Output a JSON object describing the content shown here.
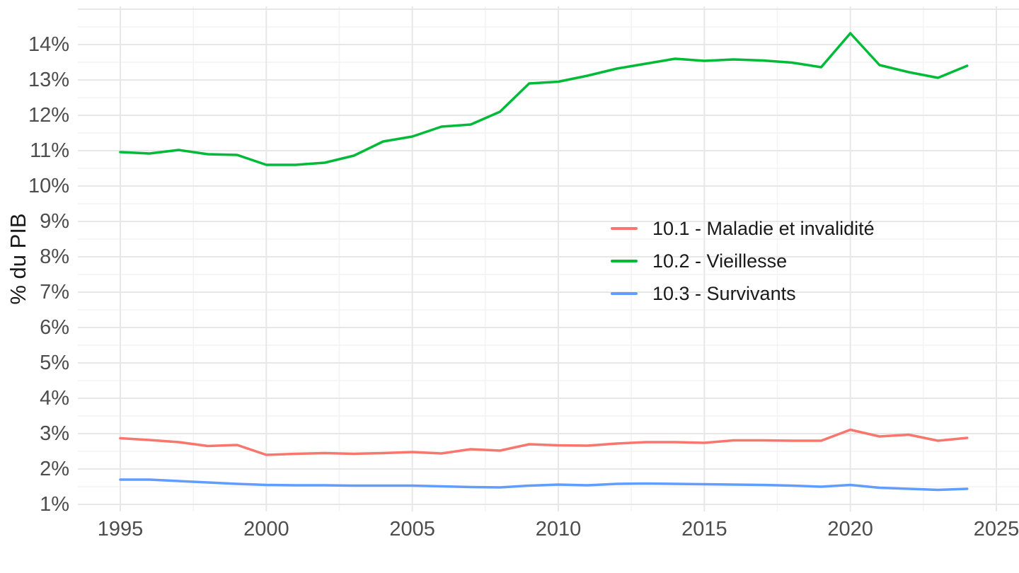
{
  "figure": {
    "background": "#FFFFFF"
  },
  "axes": {
    "y_title": "% du PIB"
  },
  "chart_data": {
    "type": "line",
    "title": "",
    "xlabel": "",
    "ylabel": "% du PIB",
    "x": [
      1995,
      1996,
      1997,
      1998,
      1999,
      2000,
      2001,
      2002,
      2003,
      2004,
      2005,
      2006,
      2007,
      2008,
      2009,
      2010,
      2011,
      2012,
      2013,
      2014,
      2015,
      2016,
      2017,
      2018,
      2019,
      2020,
      2021,
      2022,
      2023,
      2024
    ],
    "series": [
      {
        "name": "10.1 - Maladie et invalidité",
        "color": "#F8766D",
        "values": [
          2.87,
          2.82,
          2.76,
          2.65,
          2.68,
          2.4,
          2.43,
          2.45,
          2.43,
          2.45,
          2.48,
          2.44,
          2.56,
          2.52,
          2.7,
          2.67,
          2.66,
          2.72,
          2.76,
          2.76,
          2.74,
          2.81,
          2.81,
          2.8,
          2.8,
          3.11,
          2.92,
          2.97,
          2.8,
          2.88
        ]
      },
      {
        "name": "10.2 - Vieillesse",
        "color": "#00BA38",
        "values": [
          10.96,
          10.92,
          11.02,
          10.9,
          10.88,
          10.6,
          10.6,
          10.66,
          10.86,
          11.26,
          11.4,
          11.68,
          11.74,
          12.1,
          12.9,
          12.95,
          13.12,
          13.32,
          13.46,
          13.6,
          13.54,
          13.58,
          13.55,
          13.49,
          13.36,
          14.32,
          13.42,
          13.22,
          13.06,
          13.4
        ]
      },
      {
        "name": "10.3 - Survivants",
        "color": "#619CFF",
        "values": [
          1.7,
          1.7,
          1.66,
          1.62,
          1.58,
          1.55,
          1.54,
          1.54,
          1.53,
          1.53,
          1.53,
          1.51,
          1.49,
          1.48,
          1.53,
          1.56,
          1.54,
          1.58,
          1.59,
          1.58,
          1.57,
          1.56,
          1.55,
          1.53,
          1.5,
          1.55,
          1.47,
          1.44,
          1.41,
          1.44
        ]
      }
    ],
    "x_ticks": {
      "values": [
        1995,
        2000,
        2005,
        2010,
        2015,
        2020,
        2025
      ],
      "labels": [
        "1995",
        "2000",
        "2005",
        "2010",
        "2015",
        "2020",
        "2025"
      ]
    },
    "y_ticks": {
      "values": [
        1,
        2,
        3,
        4,
        5,
        6,
        7,
        8,
        9,
        10,
        11,
        12,
        13,
        14
      ],
      "labels": [
        "1%",
        "2%",
        "3%",
        "4%",
        "5%",
        "6%",
        "7%",
        "8%",
        "9%",
        "10%",
        "11%",
        "12%",
        "13%",
        "14%"
      ]
    },
    "xlim": [
      1993.5,
      2025.8
    ],
    "ylim": [
      0.8,
      15.1
    ],
    "grid": "major+minor",
    "legend_position": "inside-right",
    "colors": {
      "background": "#FFFFFF",
      "grid_major": "#E7E7E7",
      "grid_minor": "#F3F3F3",
      "tick_text": "#4D4D4D",
      "axis_title_text": "#1A1A1A",
      "legend_text": "#1A1A1A"
    }
  }
}
